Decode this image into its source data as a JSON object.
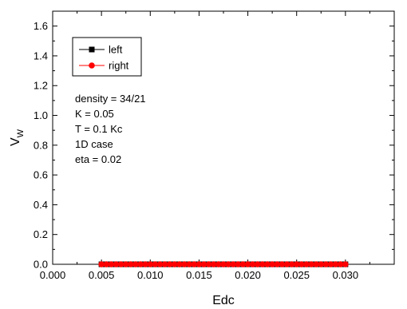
{
  "chart_data": {
    "type": "line",
    "xlabel": "Edc",
    "ylabel": "V",
    "ylabel_sub": "W",
    "xlim": [
      0.0,
      0.035
    ],
    "ylim": [
      0.0,
      1.7
    ],
    "x_ticks": [
      0.0,
      0.005,
      0.01,
      0.015,
      0.02,
      0.025,
      0.03
    ],
    "x_tick_labels": [
      "0.000",
      "0.005",
      "0.010",
      "0.015",
      "0.020",
      "0.025",
      "0.030"
    ],
    "y_ticks": [
      0.0,
      0.2,
      0.4,
      0.6,
      0.8,
      1.0,
      1.2,
      1.4,
      1.6
    ],
    "y_tick_labels": [
      "0.0",
      "0.2",
      "0.4",
      "0.6",
      "0.8",
      "1.0",
      "1.2",
      "1.4",
      "1.6"
    ],
    "grid": false,
    "legend_position": "top-left",
    "annotations": [
      "density = 34/21",
      "K = 0.05",
      "T = 0.1 Kc",
      "1D case",
      "eta = 0.02"
    ],
    "series": [
      {
        "name": "left",
        "color": "#000000",
        "marker": "square",
        "x": [
          0.005,
          0.0055,
          0.006,
          0.0065,
          0.007,
          0.0075,
          0.008,
          0.0085,
          0.009,
          0.0095,
          0.01,
          0.0105,
          0.011,
          0.0115,
          0.012,
          0.0125,
          0.013,
          0.0135,
          0.014,
          0.0145,
          0.015,
          0.0155,
          0.016,
          0.0165,
          0.017,
          0.0175,
          0.018,
          0.0185,
          0.019,
          0.0195,
          0.02,
          0.0205,
          0.021,
          0.0215,
          0.022,
          0.0225,
          0.023,
          0.0235,
          0.024,
          0.0245,
          0.025,
          0.0255,
          0.026,
          0.0265,
          0.027,
          0.0275,
          0.028,
          0.0285,
          0.029,
          0.0295,
          0.03
        ],
        "y": [
          0.0,
          0.0,
          0.0,
          0.0,
          0.0,
          0.0,
          0.0,
          0.0,
          0.0,
          0.0,
          0.0,
          0.0,
          0.0,
          0.0,
          0.0,
          0.0,
          0.0,
          0.0,
          0.0,
          0.0,
          0.0,
          0.0,
          0.0,
          0.0,
          0.0,
          0.0,
          0.0,
          0.0,
          0.0,
          0.0,
          0.0,
          0.0,
          0.0,
          0.0,
          0.0,
          0.0,
          0.0,
          0.0,
          0.0,
          0.0,
          0.0,
          0.0,
          0.0,
          0.0,
          0.0,
          0.0,
          0.0,
          0.0,
          0.0,
          0.0,
          0.0
        ]
      },
      {
        "name": "right",
        "color": "#ff0000",
        "marker": "circle",
        "x": [
          0.005,
          0.0055,
          0.006,
          0.0065,
          0.007,
          0.0075,
          0.008,
          0.0085,
          0.009,
          0.0095,
          0.01,
          0.0105,
          0.011,
          0.0115,
          0.012,
          0.0125,
          0.013,
          0.0135,
          0.014,
          0.0145,
          0.015,
          0.0155,
          0.016,
          0.0165,
          0.017,
          0.0175,
          0.018,
          0.0185,
          0.019,
          0.0195,
          0.02,
          0.0205,
          0.021,
          0.0215,
          0.022,
          0.0225,
          0.023,
          0.0235,
          0.024,
          0.0245,
          0.025,
          0.0255,
          0.026,
          0.0265,
          0.027,
          0.0275,
          0.028,
          0.0285,
          0.029,
          0.0295,
          0.03
        ],
        "y": [
          0.0,
          0.0,
          0.0,
          0.0,
          0.0,
          0.0,
          0.0,
          0.0,
          0.0,
          0.0,
          0.0,
          0.0,
          0.0,
          0.0,
          0.0,
          0.0,
          0.0,
          0.0,
          0.0,
          0.0,
          0.0,
          0.0,
          0.0,
          0.0,
          0.0,
          0.0,
          0.0,
          0.0,
          0.0,
          0.0,
          0.0,
          0.0,
          0.0,
          0.0,
          0.0,
          0.0,
          0.0,
          0.0,
          0.0,
          0.0,
          0.0,
          0.0,
          0.0,
          0.0,
          0.0,
          0.0,
          0.0,
          0.0,
          0.0,
          0.0,
          0.0
        ]
      }
    ]
  }
}
